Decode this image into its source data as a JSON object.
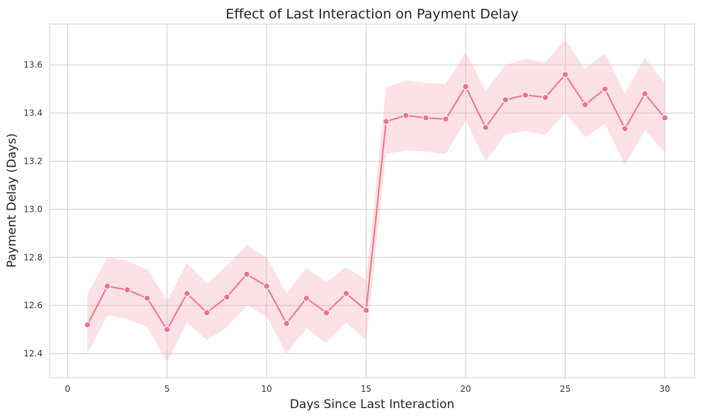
{
  "chart_data": {
    "type": "line",
    "title": "Effect of Last Interaction on Payment Delay",
    "xlabel": "Days Since Last Interaction",
    "ylabel": "Payment Delay (Days)",
    "xlim": [
      -0.9,
      31.5
    ],
    "ylim": [
      12.3,
      13.77
    ],
    "x_ticks": [
      0,
      5,
      10,
      15,
      20,
      25,
      30
    ],
    "y_ticks": [
      12.4,
      12.6,
      12.8,
      13.0,
      13.2,
      13.4,
      13.6
    ],
    "grid": true,
    "colors": {
      "line": "#f0718a",
      "band": "#f7a8b8"
    },
    "series": [
      {
        "x": [
          1,
          2,
          3,
          4,
          5,
          6,
          7,
          8,
          9,
          10,
          11,
          12,
          13,
          14,
          15,
          16,
          17,
          18,
          19,
          20,
          21,
          22,
          23,
          24,
          25,
          26,
          27,
          28,
          29,
          30
        ],
        "values": [
          12.52,
          12.68,
          12.665,
          12.63,
          12.5,
          12.65,
          12.57,
          12.635,
          12.73,
          12.68,
          12.525,
          12.63,
          12.57,
          12.65,
          12.58,
          13.365,
          13.39,
          13.38,
          13.375,
          13.51,
          13.34,
          13.455,
          13.475,
          13.465,
          13.56,
          13.435,
          13.5,
          13.335,
          13.48,
          13.38
        ],
        "lower": [
          12.4,
          12.56,
          12.545,
          12.51,
          12.365,
          12.53,
          12.455,
          12.51,
          12.6,
          12.555,
          12.4,
          12.505,
          12.445,
          12.53,
          12.455,
          13.23,
          13.245,
          13.24,
          13.23,
          13.37,
          13.2,
          13.31,
          13.325,
          13.31,
          13.4,
          13.3,
          13.355,
          13.185,
          13.33,
          13.235
        ],
        "upper": [
          12.645,
          12.8,
          12.785,
          12.75,
          12.62,
          12.775,
          12.69,
          12.765,
          12.85,
          12.8,
          12.65,
          12.755,
          12.695,
          12.76,
          12.705,
          13.505,
          13.535,
          13.525,
          13.52,
          13.655,
          13.49,
          13.6,
          13.625,
          13.61,
          13.705,
          13.585,
          13.65,
          13.48,
          13.63,
          13.525
        ]
      }
    ]
  }
}
